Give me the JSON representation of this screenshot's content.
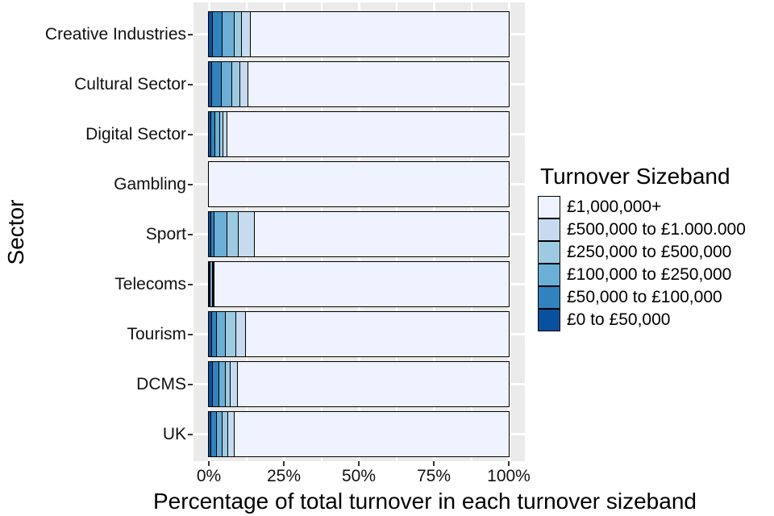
{
  "chart_data": {
    "type": "bar",
    "orientation": "horizontal",
    "stacked": true,
    "title": "",
    "xlabel": "Percentage of total turnover in each turnover sizeband",
    "ylabel": "Sector",
    "legend_title": "Turnover Sizeband",
    "legend_position": "right",
    "xlim": [
      0,
      100
    ],
    "x_tick_labels": [
      "0%",
      "25%",
      "50%",
      "75%",
      "100%"
    ],
    "x_tick_values": [
      0,
      25,
      50,
      75,
      100
    ],
    "x_minor_grid_values": [
      12.5,
      37.5,
      62.5,
      87.5
    ],
    "grid": "white major and minor gridlines on gray panel",
    "panel_bg": "#EBEBEB",
    "bar_outline": "#000000",
    "categories": [
      "Creative Industries",
      "Cultural Sector",
      "Digital Sector",
      "Gambling",
      "Sport",
      "Telecoms",
      "Tourism",
      "DCMS",
      "UK"
    ],
    "series": [
      {
        "name": "£0 to £50,000",
        "color": "#08519C",
        "values": [
          1.4,
          1.2,
          0.9,
          0,
          0.8,
          0.1,
          1.1,
          1.3,
          0.9
        ]
      },
      {
        "name": "£50,000 to £100,000",
        "color": "#3182BD",
        "values": [
          3.2,
          3.1,
          1.3,
          0,
          1.1,
          0.2,
          1.6,
          2.1,
          1.8
        ]
      },
      {
        "name": "£100,000 to £250,000",
        "color": "#6BAED6",
        "values": [
          4.1,
          3.4,
          1.6,
          0,
          4.3,
          0.8,
          2.9,
          2.2,
          1.8
        ]
      },
      {
        "name": "£250,000 to £500,000",
        "color": "#9ECAE1",
        "values": [
          2.4,
          2.9,
          1.1,
          0,
          3.7,
          0.3,
          3.6,
          1.8,
          2.0
        ]
      },
      {
        "name": "£500,000 to £1.000.000",
        "color": "#C6DBEF",
        "values": [
          2.9,
          2.7,
          1.2,
          0,
          5.4,
          0.3,
          3.1,
          2.4,
          2.1
        ]
      },
      {
        "name": "£1,000,000+",
        "color": "#EFF3FF",
        "values": [
          86.0,
          86.7,
          93.9,
          100,
          84.7,
          98.3,
          87.7,
          90.2,
          91.4
        ]
      }
    ],
    "legend_order_note": "legend shows sizebands lightest (£1,000,000+) at top to darkest (£0 to £50,000) at bottom"
  }
}
